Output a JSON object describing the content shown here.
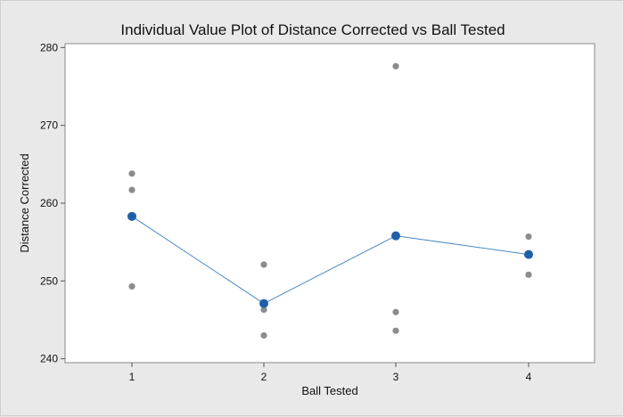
{
  "chart_data": {
    "type": "scatter",
    "title": "Individual Value Plot of Distance Corrected vs Ball Tested",
    "xlabel": "Ball Tested",
    "ylabel": "Distance Corrected",
    "categories": [
      "1",
      "2",
      "3",
      "4"
    ],
    "ylim": [
      239.5,
      280.5
    ],
    "yticks": [
      240,
      250,
      260,
      270,
      280
    ],
    "grid": false,
    "legend": "none",
    "series": [
      {
        "kind": "individual-values",
        "color": "#8c8c8c",
        "points": [
          {
            "x": "1",
            "y": 263.8
          },
          {
            "x": "1",
            "y": 261.7
          },
          {
            "x": "1",
            "y": 249.3
          },
          {
            "x": "2",
            "y": 252.1
          },
          {
            "x": "2",
            "y": 246.3
          },
          {
            "x": "2",
            "y": 243.0
          },
          {
            "x": "3",
            "y": 277.6
          },
          {
            "x": "3",
            "y": 246.0
          },
          {
            "x": "3",
            "y": 243.6
          },
          {
            "x": "4",
            "y": 255.7
          },
          {
            "x": "4",
            "y": 250.8
          }
        ]
      },
      {
        "kind": "mean-connect-line",
        "color": "#1f5fa8",
        "line_color": "#4a8ac4",
        "values": [
          258.3,
          247.1,
          255.8,
          253.4
        ]
      }
    ]
  }
}
